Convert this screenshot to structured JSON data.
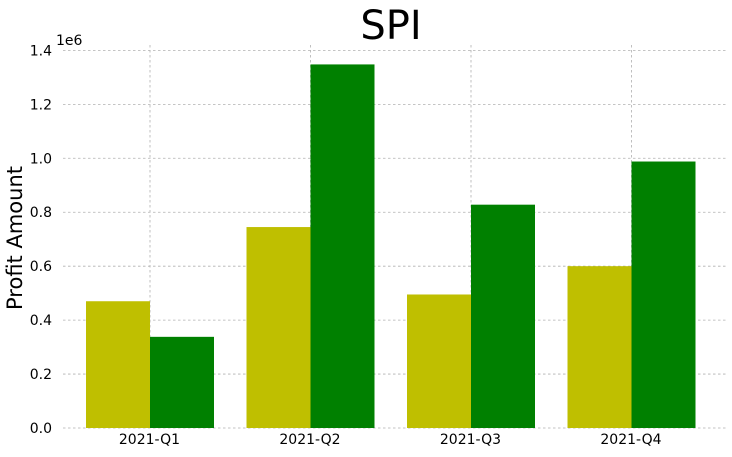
{
  "chart_data": {
    "type": "bar",
    "title": "SPI",
    "xlabel": "",
    "ylabel": "Profit Amount",
    "y_offset_label": "1e6",
    "categories": [
      "2021-Q1",
      "2021-Q2",
      "2021-Q3",
      "2021-Q4"
    ],
    "series": [
      {
        "color": "#bfbf00",
        "values": [
          470000,
          745000,
          495000,
          600000
        ]
      },
      {
        "color": "#008000",
        "values": [
          338000,
          1348000,
          828000,
          988000
        ]
      }
    ],
    "ylim": [
      0,
      1.42
    ],
    "y_scale": 1000000,
    "yticks": [
      0.0,
      0.2,
      0.4,
      0.6,
      0.8,
      1.0,
      1.2,
      1.4
    ],
    "ytick_labels": [
      "0.0",
      "0.2",
      "0.4",
      "0.6",
      "0.8",
      "1.0",
      "1.2",
      "1.4"
    ],
    "grid": true,
    "legend": "none"
  }
}
